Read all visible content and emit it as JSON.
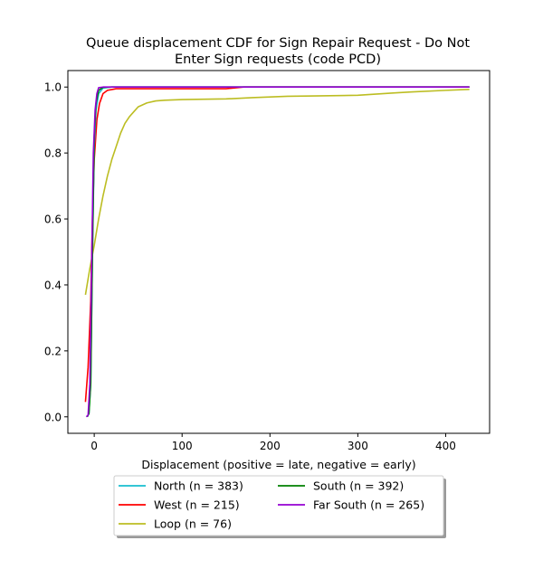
{
  "chart_data": {
    "type": "line",
    "title_lines": [
      "Queue displacement CDF for Sign Repair Request - Do Not",
      "Enter Sign  requests (code PCD)"
    ],
    "xlabel": "Displacement (positive = late, negative = early)",
    "ylabel": "",
    "xlim": [
      -30,
      450
    ],
    "ylim": [
      -0.05,
      1.05
    ],
    "x_ticks": [
      {
        "value": 0,
        "label": "0"
      },
      {
        "value": 100,
        "label": "100"
      },
      {
        "value": 200,
        "label": "200"
      },
      {
        "value": 300,
        "label": "300"
      },
      {
        "value": 400,
        "label": "400"
      }
    ],
    "y_ticks": [
      {
        "value": 0.0,
        "label": "0.0"
      },
      {
        "value": 0.2,
        "label": "0.2"
      },
      {
        "value": 0.4,
        "label": "0.4"
      },
      {
        "value": 0.6,
        "label": "0.6"
      },
      {
        "value": 0.8,
        "label": "0.8"
      },
      {
        "value": 1.0,
        "label": "1.0"
      }
    ],
    "grid": false,
    "legend_position": "below",
    "series": [
      {
        "name": "North (n = 383)",
        "color": "#17becf",
        "points": [
          [
            -8,
            0.0
          ],
          [
            -6,
            0.01
          ],
          [
            -4,
            0.1
          ],
          [
            -2,
            0.5
          ],
          [
            0,
            0.82
          ],
          [
            2,
            0.93
          ],
          [
            5,
            0.98
          ],
          [
            10,
            0.997
          ],
          [
            20,
            1.0
          ],
          [
            427,
            1.0
          ]
        ]
      },
      {
        "name": "South (n = 392)",
        "color": "#008000",
        "points": [
          [
            -8,
            0.0
          ],
          [
            -6,
            0.01
          ],
          [
            -4,
            0.1
          ],
          [
            -2,
            0.5
          ],
          [
            0,
            0.85
          ],
          [
            2,
            0.95
          ],
          [
            5,
            0.99
          ],
          [
            10,
            0.999
          ],
          [
            20,
            1.0
          ],
          [
            427,
            1.0
          ]
        ]
      },
      {
        "name": "West (n = 215)",
        "color": "#ff0000",
        "points": [
          [
            -10,
            0.045
          ],
          [
            -7,
            0.15
          ],
          [
            -4,
            0.35
          ],
          [
            -2,
            0.6
          ],
          [
            0,
            0.78
          ],
          [
            3,
            0.9
          ],
          [
            6,
            0.95
          ],
          [
            10,
            0.98
          ],
          [
            15,
            0.99
          ],
          [
            25,
            0.995
          ],
          [
            150,
            0.995
          ],
          [
            170,
            1.0
          ],
          [
            427,
            1.0
          ]
        ]
      },
      {
        "name": "Loop (n = 76)",
        "color": "#bcbd22",
        "points": [
          [
            -10,
            0.37
          ],
          [
            -5,
            0.45
          ],
          [
            0,
            0.52
          ],
          [
            5,
            0.6
          ],
          [
            10,
            0.67
          ],
          [
            15,
            0.73
          ],
          [
            20,
            0.78
          ],
          [
            25,
            0.82
          ],
          [
            30,
            0.86
          ],
          [
            35,
            0.89
          ],
          [
            40,
            0.91
          ],
          [
            45,
            0.925
          ],
          [
            50,
            0.94
          ],
          [
            60,
            0.952
          ],
          [
            70,
            0.958
          ],
          [
            80,
            0.96
          ],
          [
            100,
            0.962
          ],
          [
            150,
            0.964
          ],
          [
            180,
            0.968
          ],
          [
            200,
            0.97
          ],
          [
            220,
            0.972
          ],
          [
            250,
            0.973
          ],
          [
            300,
            0.975
          ],
          [
            340,
            0.982
          ],
          [
            360,
            0.985
          ],
          [
            400,
            0.99
          ],
          [
            427,
            0.993
          ]
        ]
      },
      {
        "name": "Far South (n = 265)",
        "color": "#9400d3",
        "points": [
          [
            -9,
            0.0
          ],
          [
            -7,
            0.005
          ],
          [
            -5,
            0.1
          ],
          [
            -3,
            0.45
          ],
          [
            -1,
            0.8
          ],
          [
            1,
            0.93
          ],
          [
            3,
            0.98
          ],
          [
            5,
            0.998
          ],
          [
            10,
            1.0
          ],
          [
            427,
            1.0
          ]
        ]
      }
    ]
  }
}
